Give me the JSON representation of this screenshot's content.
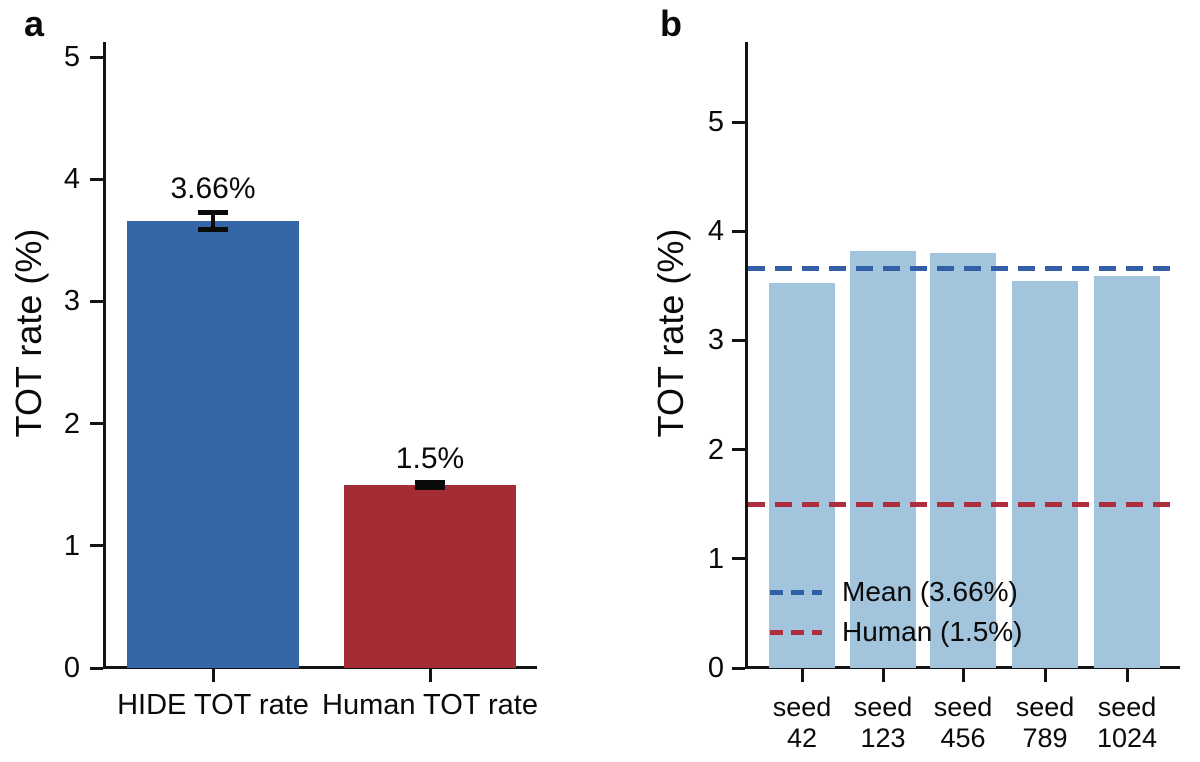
{
  "figure": {
    "background": "#ffffff",
    "text_color": "#0a0a0a",
    "axis_color": "#141414"
  },
  "chart_data": [
    {
      "panel": "a",
      "type": "bar",
      "ylabel": "TOT rate (%)",
      "ylim": [
        0,
        5.1
      ],
      "yticks": [
        "0",
        "1",
        "2",
        "3",
        "4",
        "5"
      ],
      "grid": false,
      "categories": [
        "HIDE TOT rate",
        "Human TOT rate"
      ],
      "values": [
        3.66,
        1.5
      ],
      "errors": [
        0.07,
        0.02
      ],
      "bar_labels": [
        "3.66%",
        "1.5%"
      ],
      "bar_colors": [
        "#3566a8",
        "#a32c35"
      ],
      "error_color": "#0b0b0b"
    },
    {
      "panel": "b",
      "type": "bar",
      "ylabel": "TOT rate (%)",
      "ylim": [
        0,
        5.7
      ],
      "yticks": [
        "0",
        "1",
        "2",
        "3",
        "4",
        "5"
      ],
      "grid": false,
      "categories": [
        [
          "seed",
          "42"
        ],
        [
          "seed",
          "123"
        ],
        [
          "seed",
          "456"
        ],
        [
          "seed",
          "789"
        ],
        [
          "seed",
          "1024"
        ]
      ],
      "values": [
        3.53,
        3.82,
        3.8,
        3.54,
        3.59
      ],
      "bar_color": "#a2c4dd",
      "reference_lines": [
        {
          "label": "Mean (3.66%)",
          "value": 3.66,
          "color": "#3160a8",
          "style": "dashed"
        },
        {
          "label": "Human (1.5%)",
          "value": 1.5,
          "color": "#ad2e3c",
          "style": "dashed"
        }
      ],
      "legend_position": "lower left"
    }
  ]
}
